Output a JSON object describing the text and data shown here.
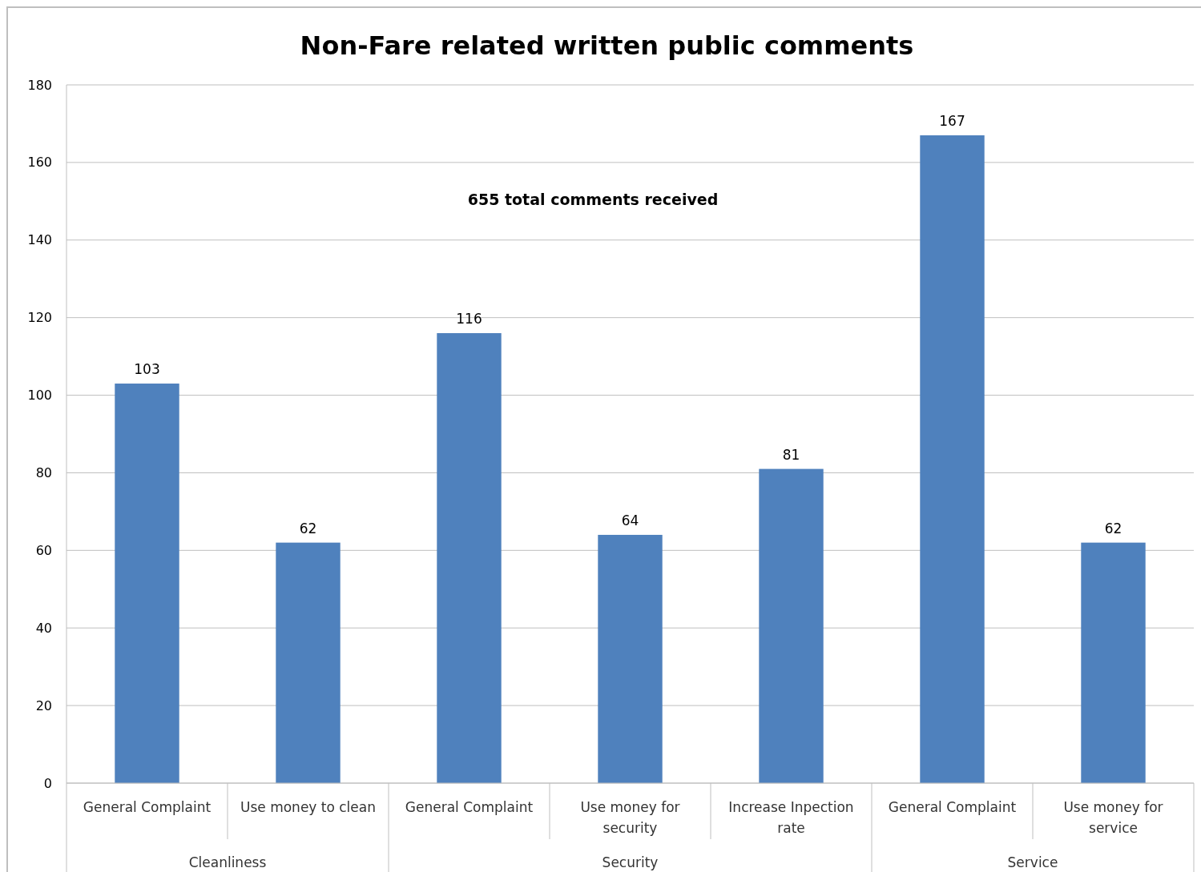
{
  "chart_data": {
    "type": "bar",
    "title": "Non-Fare related written public comments",
    "categories": [
      "General Complaint",
      "Use money to clean",
      "General Complaint",
      "Use money for security",
      "Increase Inpection rate",
      "General Complaint",
      "Use money for service"
    ],
    "values": [
      103,
      62,
      116,
      64,
      81,
      167,
      62
    ],
    "color": "#4f81bd",
    "ylim": [
      0,
      180
    ],
    "yticks": [
      0,
      20,
      40,
      60,
      80,
      100,
      120,
      140,
      160,
      180
    ],
    "grid": "y",
    "data_labels": true,
    "annotations": [
      "655 total comments received",
      "Cleanliness",
      "Security",
      "Service"
    ]
  }
}
